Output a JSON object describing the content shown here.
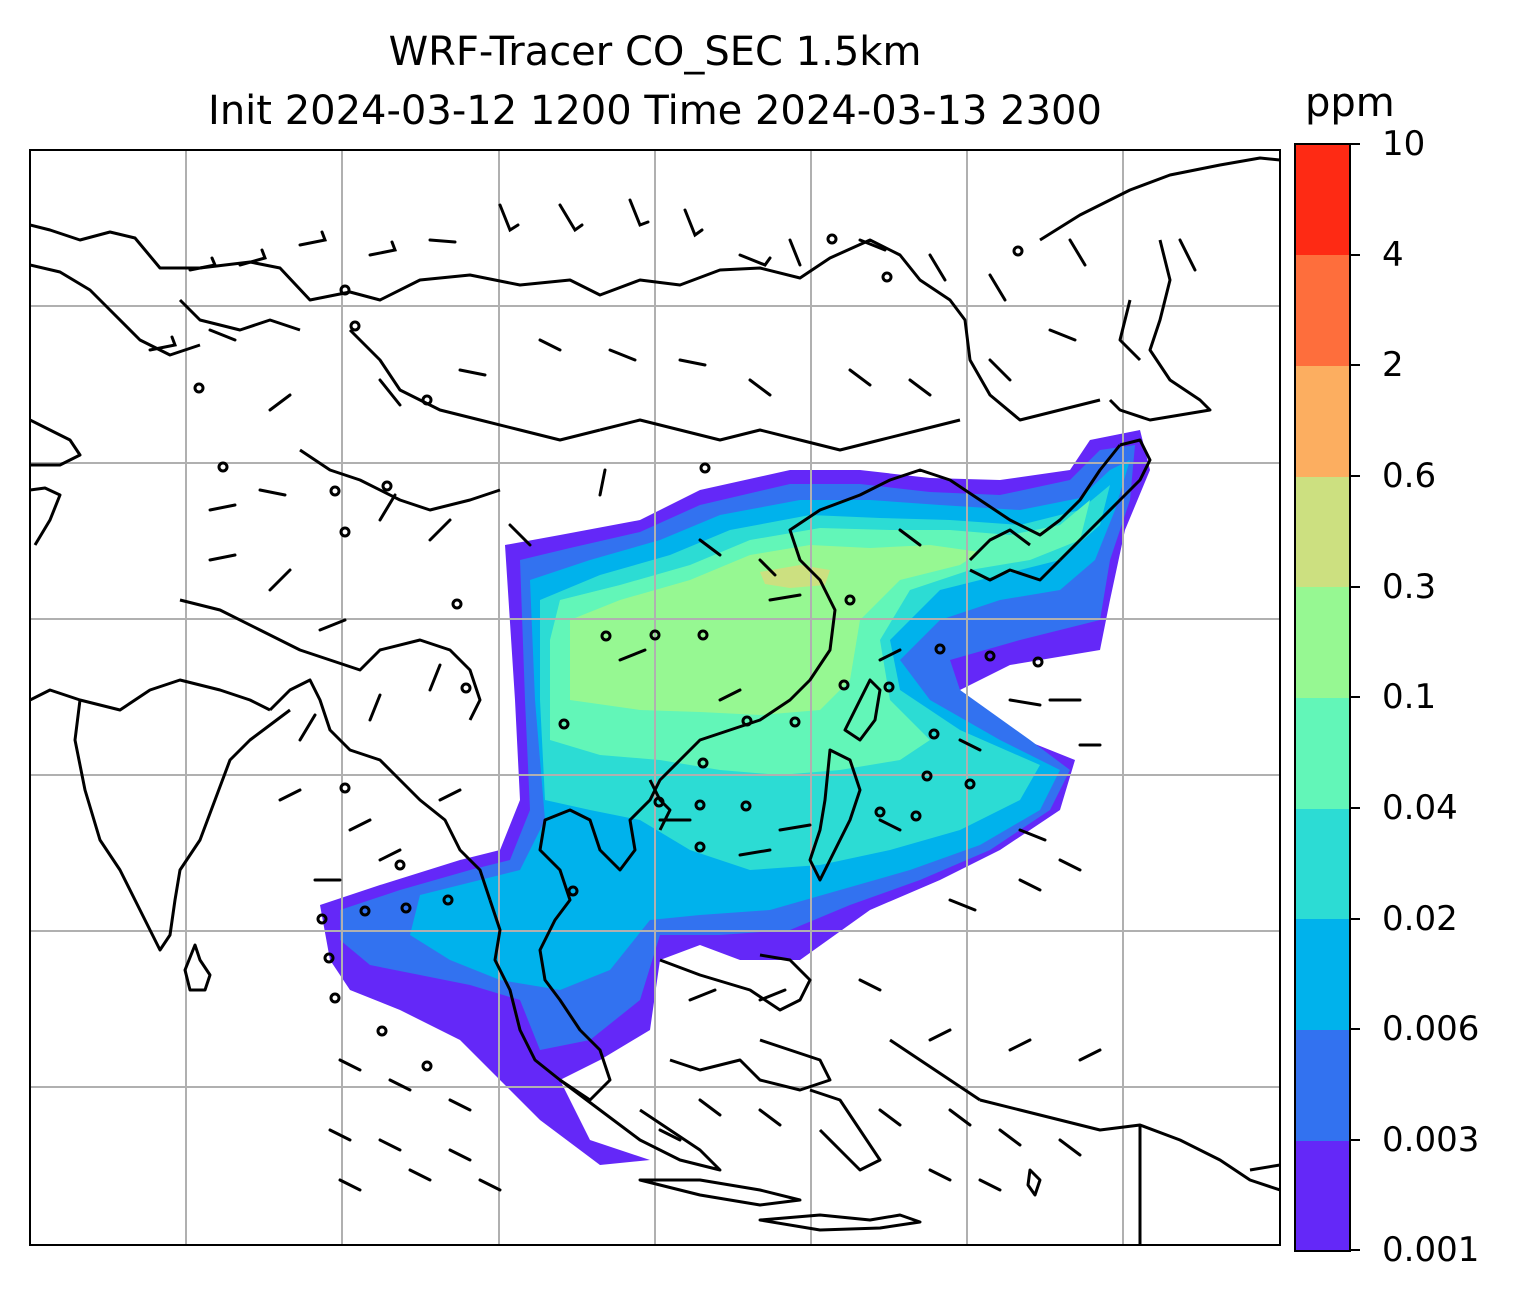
{
  "title": {
    "line1": "WRF-Tracer CO_SEC 1.5km",
    "line2": "Init 2024-03-12 1200 Time 2024-03-13 2300"
  },
  "colorbar": {
    "unit": "ppm",
    "ticks": [
      "0.001",
      "0.003",
      "0.006",
      "0.02",
      "0.04",
      "0.1",
      "0.3",
      "0.6",
      "2",
      "4",
      "10"
    ],
    "colors": [
      "#6428f8",
      "#3272f0",
      "#00b2ec",
      "#2cdcd4",
      "#62f6b8",
      "#96f892",
      "#cce080",
      "#fcae60",
      "#fe6e3c",
      "#fe2a14"
    ]
  },
  "map": {
    "gridlines": true,
    "coastline_color": "#000000",
    "grid_color": "#b0b0b0"
  }
}
